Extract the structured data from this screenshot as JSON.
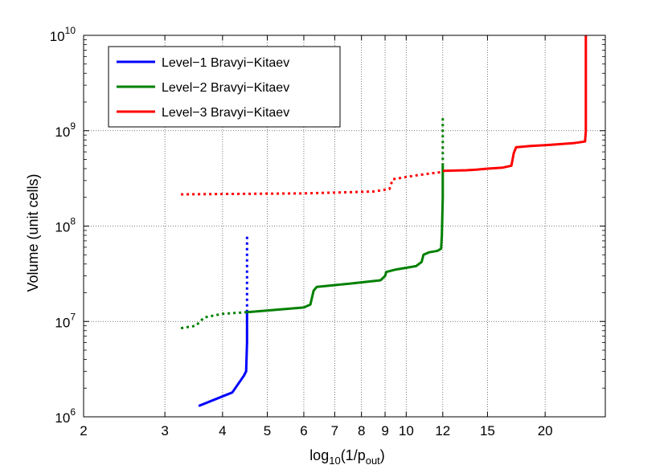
{
  "chart_data": {
    "type": "line",
    "xlabel": {
      "base": "log",
      "sub": "10",
      "mid": "(1/p",
      "sub2": "out",
      "end": ")"
    },
    "ylabel": "Volume (unit cells)",
    "xscale": "log",
    "yscale": "log",
    "xlim": [
      2,
      27
    ],
    "ylim": [
      1000000,
      10000000000
    ],
    "grid": true,
    "legend_position": "top-left",
    "x_ticks": [
      2,
      3,
      4,
      5,
      6,
      7,
      8,
      9,
      10,
      12,
      15,
      20
    ],
    "y_ticks": [
      {
        "value": 1000000,
        "base": "10",
        "exp": "6"
      },
      {
        "value": 10000000,
        "base": "10",
        "exp": "7"
      },
      {
        "value": 100000000,
        "base": "10",
        "exp": "8"
      },
      {
        "value": 1000000000,
        "base": "10",
        "exp": "9"
      },
      {
        "value": 10000000000,
        "base": "10",
        "exp": "10"
      }
    ],
    "series": [
      {
        "name": "Level−1 Bravyi−Kitaev",
        "color": "#0000ff",
        "solid": [
          [
            3.55,
            1300000
          ],
          [
            4.2,
            1800000
          ],
          [
            4.45,
            2700000
          ],
          [
            4.5,
            3000000
          ],
          [
            4.52,
            6000000
          ],
          [
            4.52,
            12500000
          ]
        ],
        "dotted": [
          [
            4.52,
            12500000
          ],
          [
            4.52,
            82000000
          ]
        ]
      },
      {
        "name": "Level−2 Bravyi−Kitaev",
        "color": "#008000",
        "solid": [
          [
            4.52,
            12500000
          ],
          [
            6.0,
            14000000
          ],
          [
            6.2,
            15000000
          ],
          [
            6.3,
            21000000
          ],
          [
            6.4,
            23000000
          ],
          [
            7.6,
            25000000
          ],
          [
            8.8,
            27000000
          ],
          [
            9.0,
            30000000
          ],
          [
            9.05,
            33000000
          ],
          [
            9.5,
            35000000
          ],
          [
            10.5,
            38000000
          ],
          [
            10.8,
            42000000
          ],
          [
            10.9,
            50000000
          ],
          [
            11.2,
            53000000
          ],
          [
            11.7,
            55000000
          ],
          [
            11.9,
            58000000
          ],
          [
            11.95,
            80000000
          ],
          [
            12.0,
            200000000
          ],
          [
            12.0,
            430000000
          ]
        ],
        "dotted": [
          [
            3.25,
            8500000
          ],
          [
            3.5,
            9000000
          ],
          [
            3.65,
            11000000
          ],
          [
            4.0,
            12000000
          ],
          [
            4.52,
            12500000
          ]
        ],
        "dotted_tail": [
          [
            12.0,
            430000000
          ],
          [
            12.0,
            1400000000
          ]
        ]
      },
      {
        "name": "Level−3 Bravyi−Kitaev",
        "color": "#ff0000",
        "solid": [
          [
            12.0,
            380000000
          ],
          [
            13.5,
            385000000
          ],
          [
            14.2,
            390000000
          ],
          [
            15.0,
            400000000
          ],
          [
            16.2,
            410000000
          ],
          [
            16.9,
            430000000
          ],
          [
            17.1,
            580000000
          ],
          [
            17.3,
            670000000
          ],
          [
            18.5,
            690000000
          ],
          [
            20.5,
            710000000
          ],
          [
            23.0,
            740000000
          ],
          [
            24.4,
            770000000
          ],
          [
            24.5,
            1000000000
          ],
          [
            24.5,
            10000000000
          ]
        ],
        "dotted": [
          [
            3.25,
            215000000
          ],
          [
            6.0,
            220000000
          ],
          [
            8.5,
            230000000
          ],
          [
            9.2,
            245000000
          ],
          [
            9.35,
            310000000
          ],
          [
            10.5,
            340000000
          ],
          [
            12.0,
            370000000
          ]
        ]
      }
    ]
  }
}
